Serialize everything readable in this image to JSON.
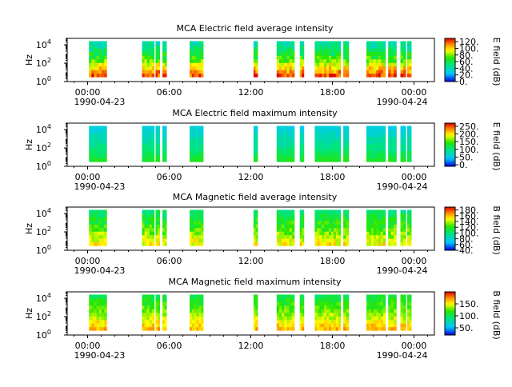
{
  "chart_data": [
    {
      "type": "heatmap",
      "title": "MCA  Electric field average intensity",
      "ylabel": "Hz",
      "cbar_label": "E field (dB)",
      "cbar_ticks": [
        "0.",
        "20.",
        "40.",
        "60.",
        "80.",
        "100.",
        "120."
      ],
      "cbar_range": [
        0,
        130
      ],
      "x_ticks": [
        "00:00",
        "06:00",
        "12:00",
        "18:00",
        "00:00"
      ],
      "x_dates": [
        "1990-04-23",
        "1990-04-24"
      ],
      "y_ticks": [
        "10^0",
        "10^2",
        "10^4"
      ],
      "y_range_log10": [
        0,
        4.7
      ],
      "data_y_range_log10": [
        0.5,
        4.4
      ],
      "x_range_hours": [
        -1.5,
        25.5
      ],
      "segments_hours": [
        [
          0.1,
          1.4
        ],
        [
          4.0,
          4.9
        ],
        [
          5.0,
          5.3
        ],
        [
          5.5,
          5.8
        ],
        [
          7.5,
          8.5
        ],
        [
          12.2,
          12.5
        ],
        [
          13.9,
          15.2
        ],
        [
          15.6,
          15.9
        ],
        [
          16.7,
          18.6
        ],
        [
          18.8,
          19.2
        ],
        [
          20.5,
          21.9
        ],
        [
          22.1,
          22.7
        ],
        [
          23.0,
          23.4
        ],
        [
          23.5,
          23.8
        ]
      ],
      "value_profile": [
        120,
        110,
        100,
        90,
        78,
        70,
        62,
        55,
        48,
        42
      ]
    },
    {
      "type": "heatmap",
      "title": "MCA  Electric field maximum intensity",
      "ylabel": "Hz",
      "cbar_label": "E field (dB)",
      "cbar_ticks": [
        "0.",
        "50.",
        "100.",
        "150.",
        "200.",
        "250."
      ],
      "cbar_range": [
        -10,
        270
      ],
      "x_ticks": [
        "00:00",
        "06:00",
        "12:00",
        "18:00",
        "00:00"
      ],
      "x_dates": [
        "1990-04-23",
        "1990-04-24"
      ],
      "y_ticks": [
        "10^0",
        "10^2",
        "10^4"
      ],
      "y_range_log10": [
        0,
        4.7
      ],
      "data_y_range_log10": [
        0.5,
        4.4
      ],
      "x_range_hours": [
        -1.5,
        25.5
      ],
      "segments_hours": [
        [
          0.1,
          1.4
        ],
        [
          4.0,
          4.9
        ],
        [
          5.0,
          5.3
        ],
        [
          5.5,
          5.8
        ],
        [
          7.5,
          8.5
        ],
        [
          12.2,
          12.5
        ],
        [
          13.9,
          15.2
        ],
        [
          15.6,
          15.9
        ],
        [
          16.7,
          18.6
        ],
        [
          18.8,
          19.2
        ],
        [
          20.5,
          21.9
        ],
        [
          22.1,
          22.7
        ],
        [
          23.0,
          23.4
        ],
        [
          23.5,
          23.8
        ]
      ],
      "value_profile": [
        130,
        120,
        110,
        100,
        92,
        85,
        78,
        70,
        62,
        55
      ]
    },
    {
      "type": "heatmap",
      "title": "MCA  Magnetic field average intensity",
      "ylabel": "Hz",
      "cbar_label": "B field (dB)",
      "cbar_ticks": [
        "40.",
        "60.",
        "80.",
        "100.",
        "120.",
        "140.",
        "160.",
        "180."
      ],
      "cbar_range": [
        40,
        190
      ],
      "x_ticks": [
        "00:00",
        "06:00",
        "12:00",
        "18:00",
        "00:00"
      ],
      "x_dates": [
        "1990-04-23",
        "1990-04-24"
      ],
      "y_ticks": [
        "10^0",
        "10^2",
        "10^4"
      ],
      "y_range_log10": [
        0,
        4.7
      ],
      "data_y_range_log10": [
        0.5,
        4.4
      ],
      "x_range_hours": [
        -1.5,
        25.5
      ],
      "segments_hours": [
        [
          0.1,
          1.4
        ],
        [
          4.0,
          4.9
        ],
        [
          5.0,
          5.3
        ],
        [
          5.5,
          5.8
        ],
        [
          7.5,
          8.5
        ],
        [
          12.2,
          12.5
        ],
        [
          13.9,
          15.2
        ],
        [
          15.6,
          15.9
        ],
        [
          16.7,
          18.6
        ],
        [
          18.8,
          19.2
        ],
        [
          20.5,
          21.9
        ],
        [
          22.1,
          22.7
        ],
        [
          23.0,
          23.4
        ],
        [
          23.5,
          23.8
        ]
      ],
      "value_profile": [
        150,
        145,
        138,
        132,
        126,
        122,
        118,
        114,
        108,
        100
      ]
    },
    {
      "type": "heatmap",
      "title": "MCA  Magnetic field maximum intensity",
      "ylabel": "Hz",
      "cbar_label": "B field (dB)",
      "cbar_ticks": [
        "50.",
        "100.",
        "150."
      ],
      "cbar_range": [
        20,
        200
      ],
      "x_ticks": [
        "00:00",
        "06:00",
        "12:00",
        "18:00",
        "00:00"
      ],
      "x_dates": [
        "1990-04-23",
        "1990-04-24"
      ],
      "y_ticks": [
        "10^0",
        "10^2",
        "10^4"
      ],
      "y_range_log10": [
        0,
        4.7
      ],
      "data_y_range_log10": [
        0.5,
        4.4
      ],
      "x_range_hours": [
        -1.5,
        25.5
      ],
      "segments_hours": [
        [
          0.1,
          1.4
        ],
        [
          4.0,
          4.9
        ],
        [
          5.0,
          5.3
        ],
        [
          5.5,
          5.8
        ],
        [
          7.5,
          8.5
        ],
        [
          12.2,
          12.5
        ],
        [
          13.9,
          15.2
        ],
        [
          15.6,
          15.9
        ],
        [
          16.7,
          18.6
        ],
        [
          18.8,
          19.2
        ],
        [
          20.5,
          21.9
        ],
        [
          22.1,
          22.7
        ],
        [
          23.0,
          23.4
        ],
        [
          23.5,
          23.8
        ]
      ],
      "value_profile": [
        165,
        158,
        150,
        142,
        135,
        128,
        122,
        116,
        110,
        104
      ]
    }
  ]
}
